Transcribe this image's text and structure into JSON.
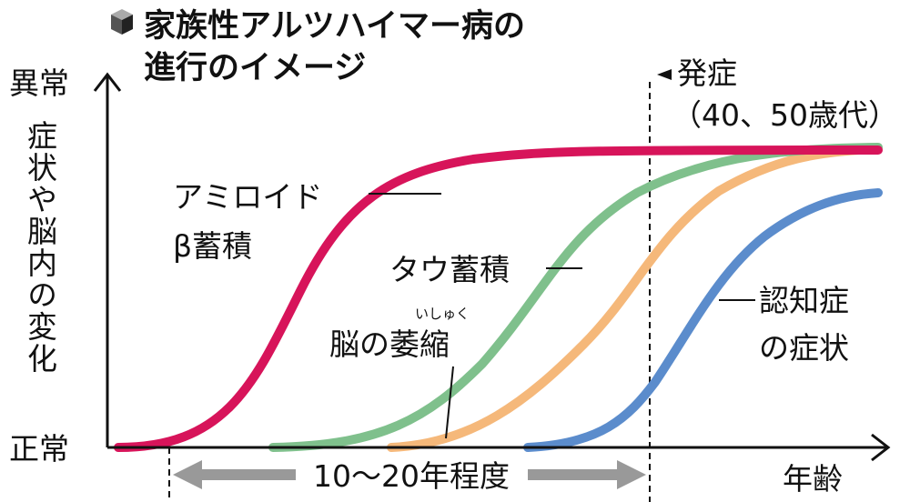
{
  "header": {
    "title_line1": "家族性アルツハイマー病の",
    "title_line2": "進行のイメージ"
  },
  "axes": {
    "y_top": "異常",
    "y_bottom": "正常",
    "y_label": "症状や脳内の変化",
    "x_label": "年齢"
  },
  "onset": {
    "label": "発症",
    "age": "（40、50歳代）"
  },
  "span": {
    "label": "10〜20年程度"
  },
  "curves": [
    {
      "label_line1": "アミロイド",
      "label_line2": "β蓄積"
    },
    {
      "label_line1": "タウ蓄積"
    },
    {
      "label_line1": "脳の萎縮",
      "ruby": "いしゅく"
    },
    {
      "label_line1": "認知症",
      "label_line2": "の症状"
    }
  ]
}
